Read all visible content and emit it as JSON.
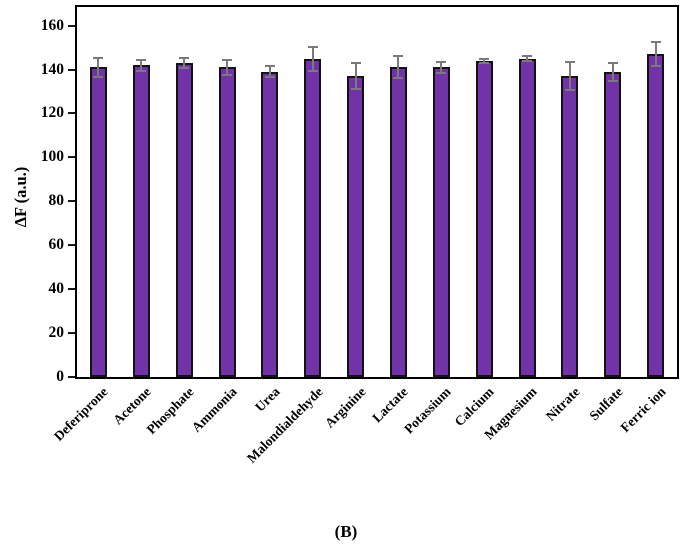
{
  "figure_label": "(B)",
  "chart_data": {
    "type": "bar",
    "title": "",
    "xlabel": "",
    "ylabel": "ΔF (a.u.)",
    "ylim": [
      0,
      168.5
    ],
    "yticks": [
      0,
      20,
      40,
      60,
      80,
      100,
      120,
      140,
      160
    ],
    "grid": false,
    "legend": "none",
    "bar_color": "#7232A8",
    "bar_border_color": "#131313",
    "error_bar_color": "#7a7a7a",
    "categories": [
      "Deferiprone",
      "Acetone",
      "Phosphate",
      "Ammonia",
      "Urea",
      "Malondialdehyde",
      "Arginine",
      "Lactate",
      "Potassium",
      "Calcium",
      "Magnesium",
      "Nitrate",
      "Sulfate",
      "Ferric ion"
    ],
    "values": [
      141,
      142,
      143,
      141,
      139,
      145,
      137,
      141,
      141,
      144,
      145,
      137,
      139,
      147
    ],
    "errors": [
      4.5,
      2.5,
      2.5,
      3.5,
      2.5,
      5.5,
      6,
      5,
      2.5,
      1,
      1,
      6.5,
      4,
      5.5
    ]
  }
}
